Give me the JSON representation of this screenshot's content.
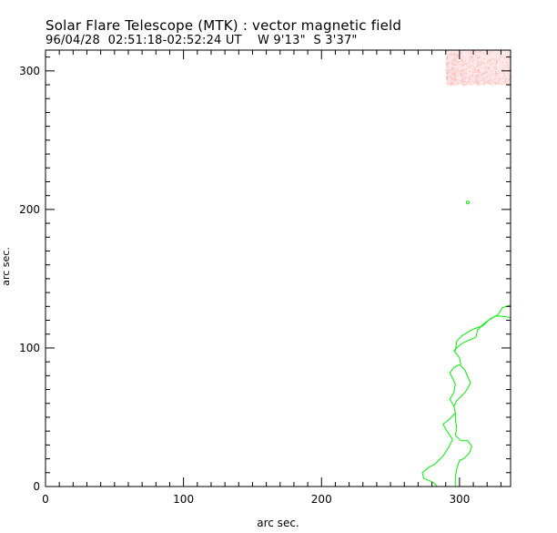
{
  "chart_data": {
    "type": "contour",
    "title": "Solar Flare Telescope (MTK) : vector magnetic field",
    "subtitle": "96/04/28  02:51:18-02:52:24 UT    W 9'13\"  S 3'37\"",
    "xlabel": "arc sec.",
    "ylabel": "arc sec.",
    "xlim": [
      0,
      337
    ],
    "ylim": [
      0,
      315
    ],
    "x_ticks": [
      0,
      100,
      200,
      300
    ],
    "y_ticks": [
      0,
      100,
      200,
      300
    ],
    "x_minor_step": 10,
    "y_minor_step": 10,
    "contour_color": "#00ee00",
    "highlight_color": "#f9b9b9",
    "contours": [
      {
        "name": "main-contour",
        "points": [
          [
            284,
            0
          ],
          [
            281,
            3
          ],
          [
            274,
            6
          ],
          [
            273,
            10
          ],
          [
            278,
            14
          ],
          [
            282,
            16
          ],
          [
            288,
            22
          ],
          [
            292,
            28
          ],
          [
            295,
            34
          ],
          [
            291,
            40
          ],
          [
            288,
            45
          ],
          [
            292,
            48
          ],
          [
            297,
            53
          ],
          [
            296,
            58
          ],
          [
            293,
            63
          ],
          [
            296,
            68
          ],
          [
            297,
            74
          ],
          [
            295,
            78
          ],
          [
            293,
            82
          ],
          [
            296,
            86
          ],
          [
            300,
            88
          ],
          [
            304,
            84
          ],
          [
            306,
            79
          ],
          [
            308,
            75
          ],
          [
            306,
            71
          ],
          [
            304,
            68
          ],
          [
            301,
            65
          ],
          [
            298,
            62
          ],
          [
            296,
            58
          ],
          [
            297,
            53
          ],
          [
            297,
            48
          ],
          [
            298,
            42
          ],
          [
            297,
            37
          ],
          [
            301,
            33
          ],
          [
            306,
            33
          ],
          [
            309,
            29
          ],
          [
            307,
            24
          ],
          [
            303,
            20
          ],
          [
            300,
            19
          ],
          [
            298,
            13
          ],
          [
            297,
            7
          ],
          [
            297,
            0
          ]
        ]
      },
      {
        "name": "upper-contour",
        "points": [
          [
            301,
            88
          ],
          [
            300,
            93
          ],
          [
            296,
            98
          ],
          [
            299,
            101
          ],
          [
            303,
            104
          ],
          [
            308,
            106
          ],
          [
            312,
            108
          ],
          [
            313,
            113
          ],
          [
            317,
            117
          ],
          [
            321,
            120
          ],
          [
            326,
            123
          ],
          [
            330,
            123
          ],
          [
            337,
            122
          ]
        ]
      },
      {
        "name": "middle-contour",
        "points": [
          [
            297,
            98
          ],
          [
            298,
            105
          ],
          [
            302,
            109
          ],
          [
            307,
            112
          ],
          [
            311,
            114
          ],
          [
            317,
            116
          ],
          [
            322,
            121
          ],
          [
            328,
            124
          ],
          [
            331,
            129
          ],
          [
            337,
            131
          ]
        ]
      }
    ],
    "highlight_region": {
      "name": "flare-region",
      "x_range": [
        290,
        337
      ],
      "y_range": [
        290,
        315
      ]
    }
  }
}
